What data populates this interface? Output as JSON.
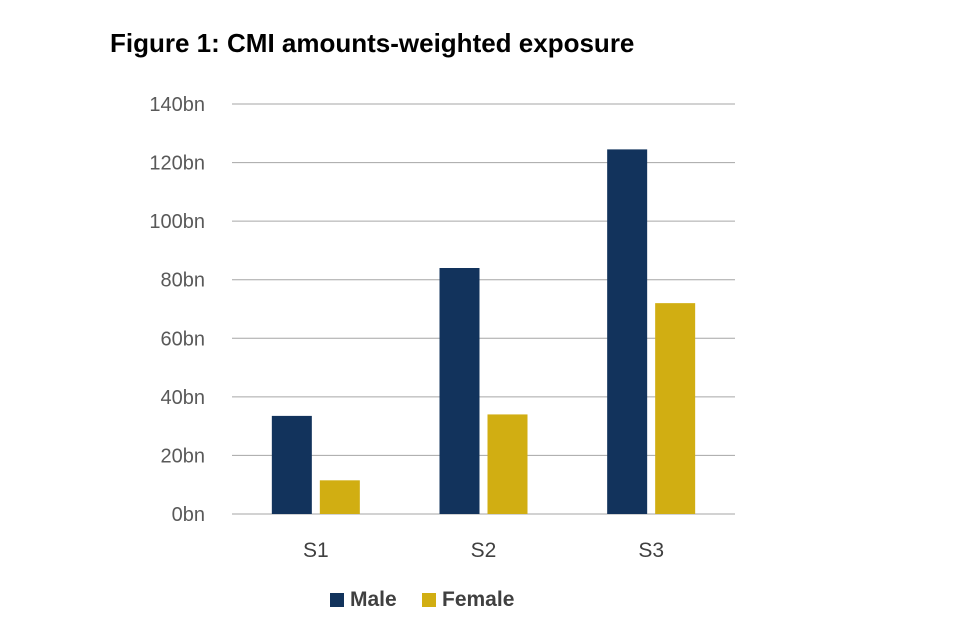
{
  "chart_data": {
    "type": "bar",
    "title": "Figure 1: CMI amounts-weighted exposure",
    "categories": [
      "S1",
      "S2",
      "S3"
    ],
    "series": [
      {
        "name": "Male",
        "values": [
          33.5,
          84,
          124.5
        ],
        "color": "#12335c"
      },
      {
        "name": "Female",
        "values": [
          11.5,
          34,
          72
        ],
        "color": "#d1ae12"
      }
    ],
    "y_ticks": [
      0,
      20,
      40,
      60,
      80,
      100,
      120,
      140
    ],
    "y_tick_labels": [
      "0bn",
      "20bn",
      "40bn",
      "60bn",
      "80bn",
      "100bn",
      "120bn",
      "140bn"
    ],
    "ylim": [
      0,
      140
    ],
    "grid": true,
    "legend": "bottom"
  }
}
